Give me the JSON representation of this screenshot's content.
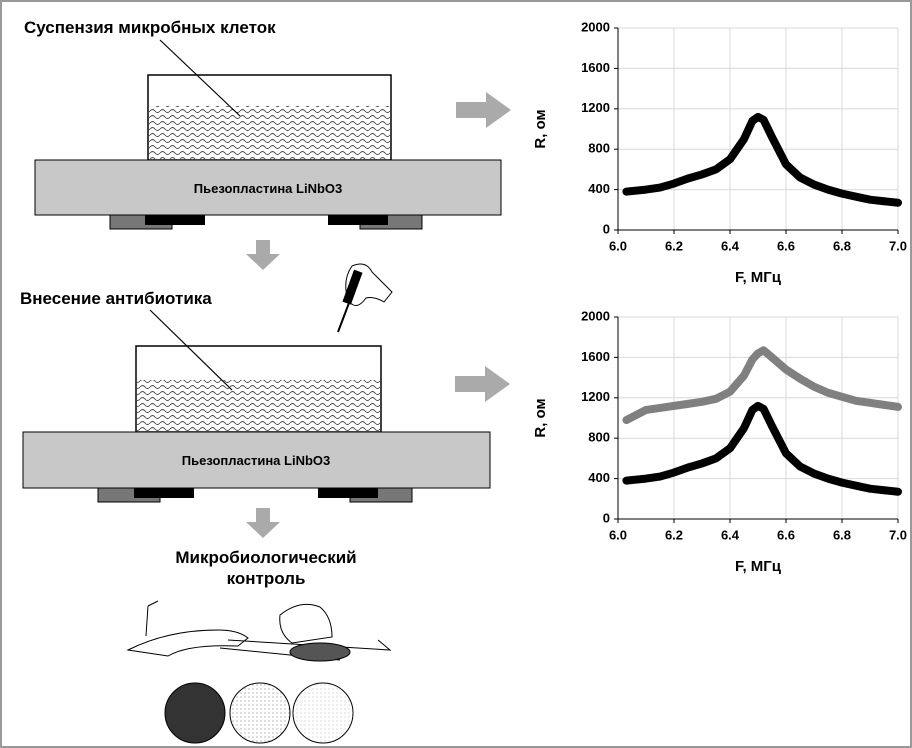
{
  "labels": {
    "suspension": "Суспензия микробных клеток",
    "plate_top": "Пьезопластина LiNbO3",
    "antibiotic": "Внесение антибиотика",
    "plate_bottom": "Пьезопластина LiNbO3",
    "control": [
      "Микробиологический",
      "контроль"
    ]
  },
  "chart_data": [
    {
      "type": "line",
      "xlabel": "F, МГц",
      "ylabel": "R, ом",
      "x": [
        6.03,
        6.1,
        6.15,
        6.2,
        6.25,
        6.3,
        6.35,
        6.4,
        6.45,
        6.48,
        6.5,
        6.52,
        6.55,
        6.6,
        6.65,
        6.7,
        6.75,
        6.8,
        6.85,
        6.9,
        6.95,
        7.0
      ],
      "series": [
        {
          "color": "#000000",
          "values": [
            380,
            400,
            420,
            460,
            510,
            550,
            600,
            700,
            900,
            1080,
            1120,
            1090,
            920,
            650,
            520,
            450,
            400,
            360,
            330,
            300,
            285,
            270
          ]
        }
      ],
      "xlim": [
        6.0,
        7.0
      ],
      "xticks": [
        {
          "value": 6.0,
          "label": "6.0"
        },
        {
          "value": 6.2,
          "label": "6.2"
        },
        {
          "value": 6.4,
          "label": "6.4"
        },
        {
          "value": 6.6,
          "label": "6.6"
        },
        {
          "value": 6.8,
          "label": "6.8"
        },
        {
          "value": 7.0,
          "label": "7.0"
        }
      ],
      "ylim": [
        0,
        2000
      ],
      "yticks": [
        0,
        400,
        800,
        1200,
        1600,
        2000
      ],
      "grid": true
    },
    {
      "type": "line",
      "xlabel": "F, МГц",
      "ylabel": "R, ом",
      "x": [
        6.03,
        6.1,
        6.15,
        6.2,
        6.25,
        6.3,
        6.35,
        6.4,
        6.45,
        6.48,
        6.5,
        6.52,
        6.55,
        6.6,
        6.65,
        6.7,
        6.75,
        6.8,
        6.85,
        6.9,
        6.95,
        7.0
      ],
      "series": [
        {
          "color": "#808080",
          "values": [
            980,
            1080,
            1100,
            1120,
            1140,
            1160,
            1190,
            1260,
            1420,
            1580,
            1640,
            1670,
            1600,
            1480,
            1390,
            1310,
            1250,
            1210,
            1170,
            1150,
            1130,
            1110
          ]
        },
        {
          "color": "#000000",
          "values": [
            380,
            400,
            420,
            460,
            510,
            550,
            600,
            700,
            900,
            1080,
            1120,
            1090,
            920,
            650,
            520,
            450,
            400,
            360,
            330,
            300,
            285,
            270
          ]
        }
      ],
      "xlim": [
        6.0,
        7.0
      ],
      "xticks": [
        {
          "value": 6.0,
          "label": "6.0"
        },
        {
          "value": 6.2,
          "label": "6.2"
        },
        {
          "value": 6.4,
          "label": "6.4"
        },
        {
          "value": 6.6,
          "label": "6.6"
        },
        {
          "value": 6.8,
          "label": "6.8"
        },
        {
          "value": 7.0,
          "label": "7.0"
        }
      ],
      "ylim": [
        0,
        2000
      ],
      "yticks": [
        0,
        400,
        800,
        1200,
        1600,
        2000
      ],
      "grid": true
    }
  ]
}
